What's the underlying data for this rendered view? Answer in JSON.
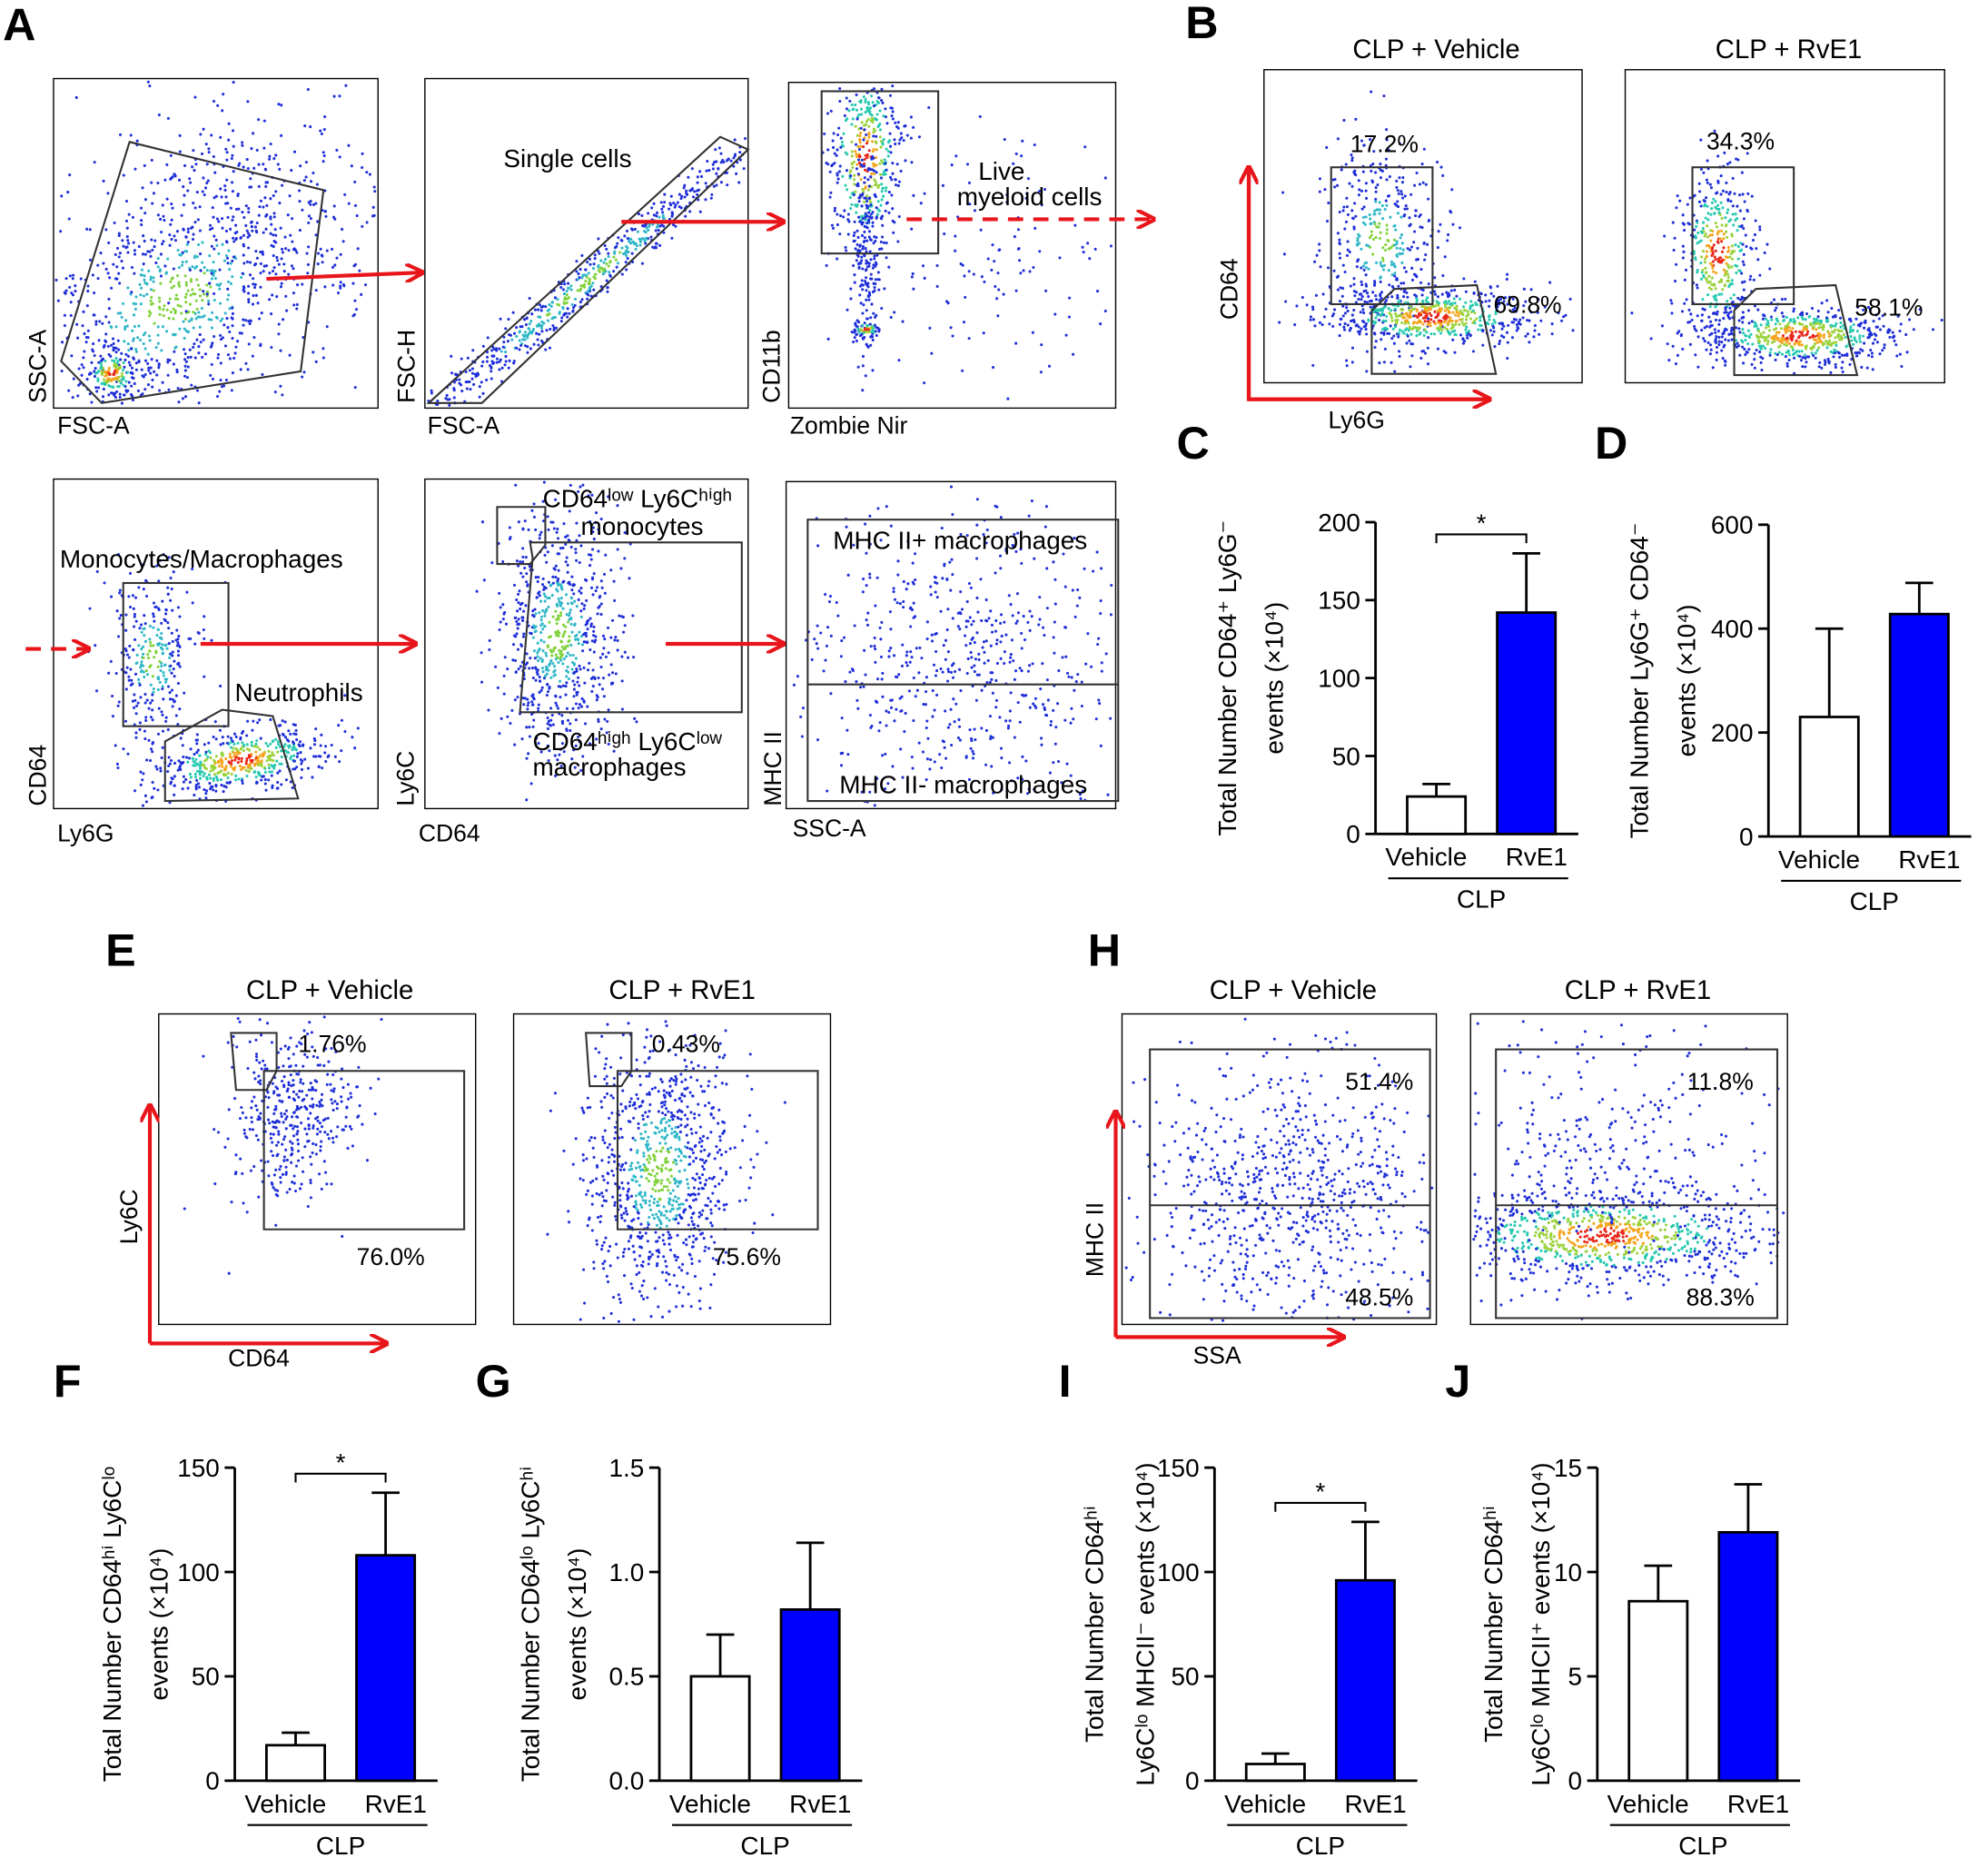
{
  "chart_data": [
    {
      "type": "bar",
      "panel_label": "C",
      "categories": [
        "Vehicle",
        "RvE1"
      ],
      "group_label": "CLP",
      "values": [
        24,
        142
      ],
      "errors": [
        8,
        38
      ],
      "colors": [
        "#ffffff",
        "#0000ff"
      ],
      "ylabel": [
        "Total Number CD64⁺ Ly6G⁻",
        "events (×10⁴)"
      ],
      "ylim": [
        0,
        200
      ],
      "yticks": [
        0,
        50,
        100,
        150,
        200
      ],
      "significance": "*"
    },
    {
      "type": "bar",
      "panel_label": "D",
      "categories": [
        "Vehicle",
        "RvE1"
      ],
      "group_label": "CLP",
      "values": [
        230,
        428
      ],
      "errors": [
        170,
        60
      ],
      "colors": [
        "#ffffff",
        "#0000ff"
      ],
      "ylabel": [
        "Total Number Ly6G⁺ CD64⁻",
        "events (×10⁴)"
      ],
      "ylim": [
        0,
        600
      ],
      "yticks": [
        0,
        200,
        400,
        600
      ]
    },
    {
      "type": "bar",
      "panel_label": "F",
      "categories": [
        "Vehicle",
        "RvE1"
      ],
      "group_label": "CLP",
      "values": [
        17,
        108
      ],
      "errors": [
        6,
        30
      ],
      "colors": [
        "#ffffff",
        "#0000ff"
      ],
      "ylabel": [
        "Total Number CD64ʰⁱ Ly6Cˡᵒ",
        "events (×10⁴)"
      ],
      "ylim": [
        0,
        150
      ],
      "yticks": [
        0,
        50,
        100,
        150
      ],
      "significance": "*"
    },
    {
      "type": "bar",
      "panel_label": "G",
      "categories": [
        "Vehicle",
        "RvE1"
      ],
      "group_label": "CLP",
      "values": [
        0.5,
        0.82
      ],
      "errors": [
        0.2,
        0.32
      ],
      "colors": [
        "#ffffff",
        "#0000ff"
      ],
      "ylabel": [
        "Total Number CD64ˡᵒ Ly6Cʰⁱ",
        "events (×10⁴)"
      ],
      "ylim": [
        0,
        1.5
      ],
      "yticks": [
        {
          "value": 0,
          "label": "0.0"
        },
        0.5,
        {
          "value": 1,
          "label": "1.0"
        },
        1.5
      ]
    },
    {
      "type": "bar",
      "panel_label": "I",
      "categories": [
        "Vehicle",
        "RvE1"
      ],
      "group_label": "CLP",
      "values": [
        8,
        96
      ],
      "errors": [
        5,
        28
      ],
      "colors": [
        "#ffffff",
        "#0000ff"
      ],
      "ylabel": [
        "Total Number CD64ʰⁱ",
        "Ly6Cˡᵒ MHCII⁻ events (×10⁴)"
      ],
      "ylim": [
        0,
        150
      ],
      "yticks": [
        0,
        50,
        100,
        150
      ],
      "significance": "*"
    },
    {
      "type": "bar",
      "panel_label": "J",
      "categories": [
        "Vehicle",
        "RvE1"
      ],
      "group_label": "CLP",
      "values": [
        8.6,
        11.9
      ],
      "errors": [
        1.7,
        2.3
      ],
      "colors": [
        "#ffffff",
        "#0000ff"
      ],
      "ylabel": [
        "Total Number CD64ʰⁱ",
        "Ly6Cˡᵒ MHCII⁺ events (×10⁴)"
      ],
      "ylim": [
        0,
        15
      ],
      "yticks": [
        0,
        5,
        10,
        15
      ]
    }
  ],
  "flow": {
    "A": {
      "letter": "A",
      "plots": [
        {
          "y": "SSC-A",
          "x": "FSC-A"
        },
        {
          "y": "FSC-H",
          "x": "FSC-A",
          "gates": [
            "Single cells"
          ]
        },
        {
          "y": "CD11b",
          "x": "Zombie Nir",
          "gates": [
            "Live",
            "myeloid cells"
          ]
        },
        {
          "y": "CD64",
          "x": "Ly6G",
          "gates": [
            "Monocytes/Macrophages",
            "Neutrophils"
          ]
        },
        {
          "y": "Ly6C",
          "x": "CD64",
          "gates": [
            "CD64ˡᵒʷ Ly6Cʰⁱᵍʰ",
            "monocytes",
            "CD64ʰⁱᵍʰ Ly6Cˡᵒʷ",
            "macrophages"
          ]
        },
        {
          "y": "MHC II",
          "x": "SSC-A",
          "gates": [
            "MHC II+ macrophages",
            "MHC II- macrophages"
          ]
        }
      ]
    },
    "B": {
      "letter": "B",
      "titles": [
        "CLP + Vehicle",
        "CLP + RvE1"
      ],
      "y": "CD64",
      "x": "Ly6G",
      "percents": [
        [
          "17.2%",
          "69.8%"
        ],
        [
          "34.3%",
          "58.1%"
        ]
      ]
    },
    "E": {
      "letter": "E",
      "titles": [
        "CLP + Vehicle",
        "CLP + RvE1"
      ],
      "y": "Ly6C",
      "x": "CD64",
      "percents": [
        [
          "1.76%",
          "76.0%"
        ],
        [
          "0.43%",
          "75.6%"
        ]
      ]
    },
    "H": {
      "letter": "H",
      "titles": [
        "CLP + Vehicle",
        "CLP + RvE1"
      ],
      "y": "MHC II",
      "x": "SSA",
      "percents": [
        [
          "51.4%",
          "48.5%"
        ],
        [
          "11.8%",
          "88.3%"
        ]
      ]
    }
  }
}
